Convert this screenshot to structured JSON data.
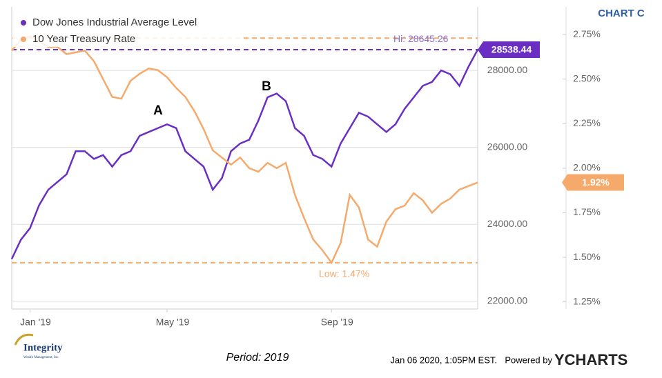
{
  "chart_data": {
    "type": "line",
    "chart_label": "CHART C",
    "categories": [
      null,
      null,
      "Jan '19",
      null,
      null,
      null,
      null,
      null,
      null,
      null,
      null,
      null,
      null,
      null,
      null,
      null,
      null,
      "May '19",
      null,
      null,
      null,
      null,
      null,
      null,
      null,
      null,
      null,
      null,
      null,
      null,
      null,
      null,
      null,
      null,
      null,
      "Sep '19",
      null,
      null,
      null,
      null,
      null,
      null,
      null,
      null,
      null,
      null,
      null,
      null,
      null,
      null,
      null,
      null
    ],
    "series": [
      {
        "name": "Dow Jones Industrial Average Level",
        "color": "#6a2fc2",
        "axis": "y",
        "end_label": "28538.44",
        "values": [
          23100,
          23600,
          23900,
          24500,
          24900,
          25100,
          25300,
          25900,
          25900,
          25700,
          25800,
          25500,
          25800,
          25900,
          26300,
          26400,
          26500,
          26600,
          26500,
          25900,
          25700,
          25500,
          24900,
          25200,
          25900,
          26100,
          26200,
          26700,
          27300,
          27400,
          27200,
          26500,
          26300,
          25800,
          25700,
          25500,
          26100,
          26500,
          26900,
          26800,
          26600,
          26400,
          26600,
          27000,
          27300,
          27600,
          27700,
          28000,
          27900,
          27600,
          28100,
          28538.44
        ]
      },
      {
        "name": "10 Year Treasury Rate",
        "color": "#f5a96b",
        "axis": "y2",
        "end_label": "1.92%",
        "values": [
          2.66,
          2.72,
          2.74,
          2.71,
          2.68,
          2.68,
          2.64,
          2.65,
          2.66,
          2.6,
          2.5,
          2.4,
          2.39,
          2.49,
          2.53,
          2.56,
          2.55,
          2.51,
          2.45,
          2.4,
          2.32,
          2.22,
          2.1,
          2.06,
          2.02,
          2.06,
          2.0,
          1.98,
          2.03,
          2.0,
          2.03,
          1.85,
          1.72,
          1.6,
          1.54,
          1.47,
          1.58,
          1.85,
          1.78,
          1.6,
          1.56,
          1.7,
          1.77,
          1.79,
          1.86,
          1.82,
          1.75,
          1.8,
          1.83,
          1.88,
          1.9,
          1.92
        ]
      }
    ],
    "ylim": [
      21800,
      29650
    ],
    "yticks": [
      {
        "value": 22000,
        "label": "22000.00"
      },
      {
        "value": 24000,
        "label": "24000.00"
      },
      {
        "value": 26000,
        "label": "26000.00"
      },
      {
        "value": 28000,
        "label": "28000.00"
      }
    ],
    "y2lim": [
      1.21,
      2.905
    ],
    "y2ticks": [
      {
        "value": 1.25,
        "label": "1.25%"
      },
      {
        "value": 1.5,
        "label": "1.50%"
      },
      {
        "value": 1.75,
        "label": "1.75%"
      },
      {
        "value": 2.0,
        "label": "2.00%"
      },
      {
        "value": 2.25,
        "label": "2.25%"
      },
      {
        "value": 2.5,
        "label": "2.50%"
      },
      {
        "value": 2.75,
        "label": "2.75%"
      }
    ],
    "reference_lines": [
      {
        "value": 2.73,
        "axis": "y2",
        "label": "Hi: 28645.26"
      },
      {
        "value": 1.47,
        "axis": "y2",
        "label": "Low: 1.47%"
      }
    ],
    "annotations": [
      {
        "text": "A"
      },
      {
        "text": "B"
      }
    ],
    "grid": true,
    "legend": "upper left"
  },
  "footer": {
    "period": "Period: 2019",
    "timestamp": "Jan 06 2020, 1:05PM EST.",
    "powered": "Powered by",
    "brand": "YCHARTS",
    "logo": "Integrity",
    "logo_sub": "Wealth Management, Inc."
  }
}
